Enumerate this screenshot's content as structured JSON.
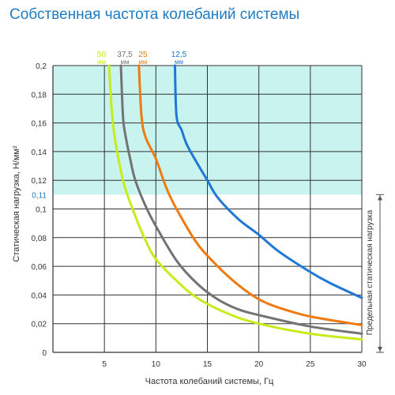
{
  "chart_data": {
    "type": "line",
    "title": "Собственная частота колебаний системы",
    "xlabel": "Частота колебаний системы, Гц",
    "ylabel": "Статическая нагрузка, Н/мм²",
    "xlim": [
      0,
      30
    ],
    "ylim": [
      0,
      0.2
    ],
    "x_ticks": [
      "5",
      "10",
      "15",
      "20",
      "25",
      "30"
    ],
    "y_ticks": [
      "0",
      "0,02",
      "0,04",
      "0,06",
      "0,08",
      "0,1",
      "0,12",
      "0,14",
      "0,16",
      "0,18",
      "0,2"
    ],
    "grid": true,
    "shaded_region": {
      "from": 0.11,
      "to": 0.2,
      "color": "#c8f3ee"
    },
    "marker": {
      "value": 0.11,
      "label": "0,11",
      "color": "#1f7bc2"
    },
    "range_label": "Предельная статическая нагрузка",
    "series": [
      {
        "name": "50 мм",
        "label_value": "50",
        "label_unit": "мм",
        "color": "#c6ec1b",
        "x": [
          5.45,
          5.7,
          6.0,
          6.5,
          7.0,
          8.0,
          9.0,
          10.0,
          12.0,
          14.0,
          17.0,
          20.0,
          25.0,
          30.0
        ],
        "y": [
          0.2,
          0.17,
          0.15,
          0.13,
          0.115,
          0.095,
          0.078,
          0.065,
          0.05,
          0.038,
          0.027,
          0.02,
          0.013,
          0.009
        ]
      },
      {
        "name": "37,5 мм",
        "label_value": "37,5",
        "label_unit": "мм",
        "color": "#737373",
        "x": [
          6.6,
          6.8,
          7.0,
          7.5,
          8.0,
          9.0,
          10.0,
          12.0,
          14.0,
          16.0,
          18.0,
          20.0,
          25.0,
          30.0
        ],
        "y": [
          0.2,
          0.165,
          0.153,
          0.135,
          0.12,
          0.102,
          0.088,
          0.064,
          0.048,
          0.037,
          0.03,
          0.026,
          0.018,
          0.013
        ]
      },
      {
        "name": "25 мм",
        "label_value": "25",
        "label_unit": "мм",
        "color": "#ee7a12",
        "x": [
          8.35,
          8.6,
          9.0,
          10.0,
          11.0,
          12.0,
          14.0,
          16.0,
          18.0,
          20.0,
          22.0,
          25.0,
          30.0
        ],
        "y": [
          0.2,
          0.165,
          0.15,
          0.135,
          0.115,
          0.1,
          0.076,
          0.06,
          0.047,
          0.037,
          0.031,
          0.025,
          0.019
        ]
      },
      {
        "name": "12,5 мм",
        "label_value": "12,5",
        "label_unit": "мм",
        "color": "#1f77d6",
        "x": [
          11.85,
          12.0,
          12.5,
          13.0,
          14.0,
          15.0,
          16.0,
          18.0,
          20.0,
          22.0,
          25.0,
          27.0,
          30.0
        ],
        "y": [
          0.2,
          0.165,
          0.155,
          0.145,
          0.132,
          0.12,
          0.108,
          0.093,
          0.082,
          0.07,
          0.056,
          0.048,
          0.038
        ]
      }
    ]
  }
}
